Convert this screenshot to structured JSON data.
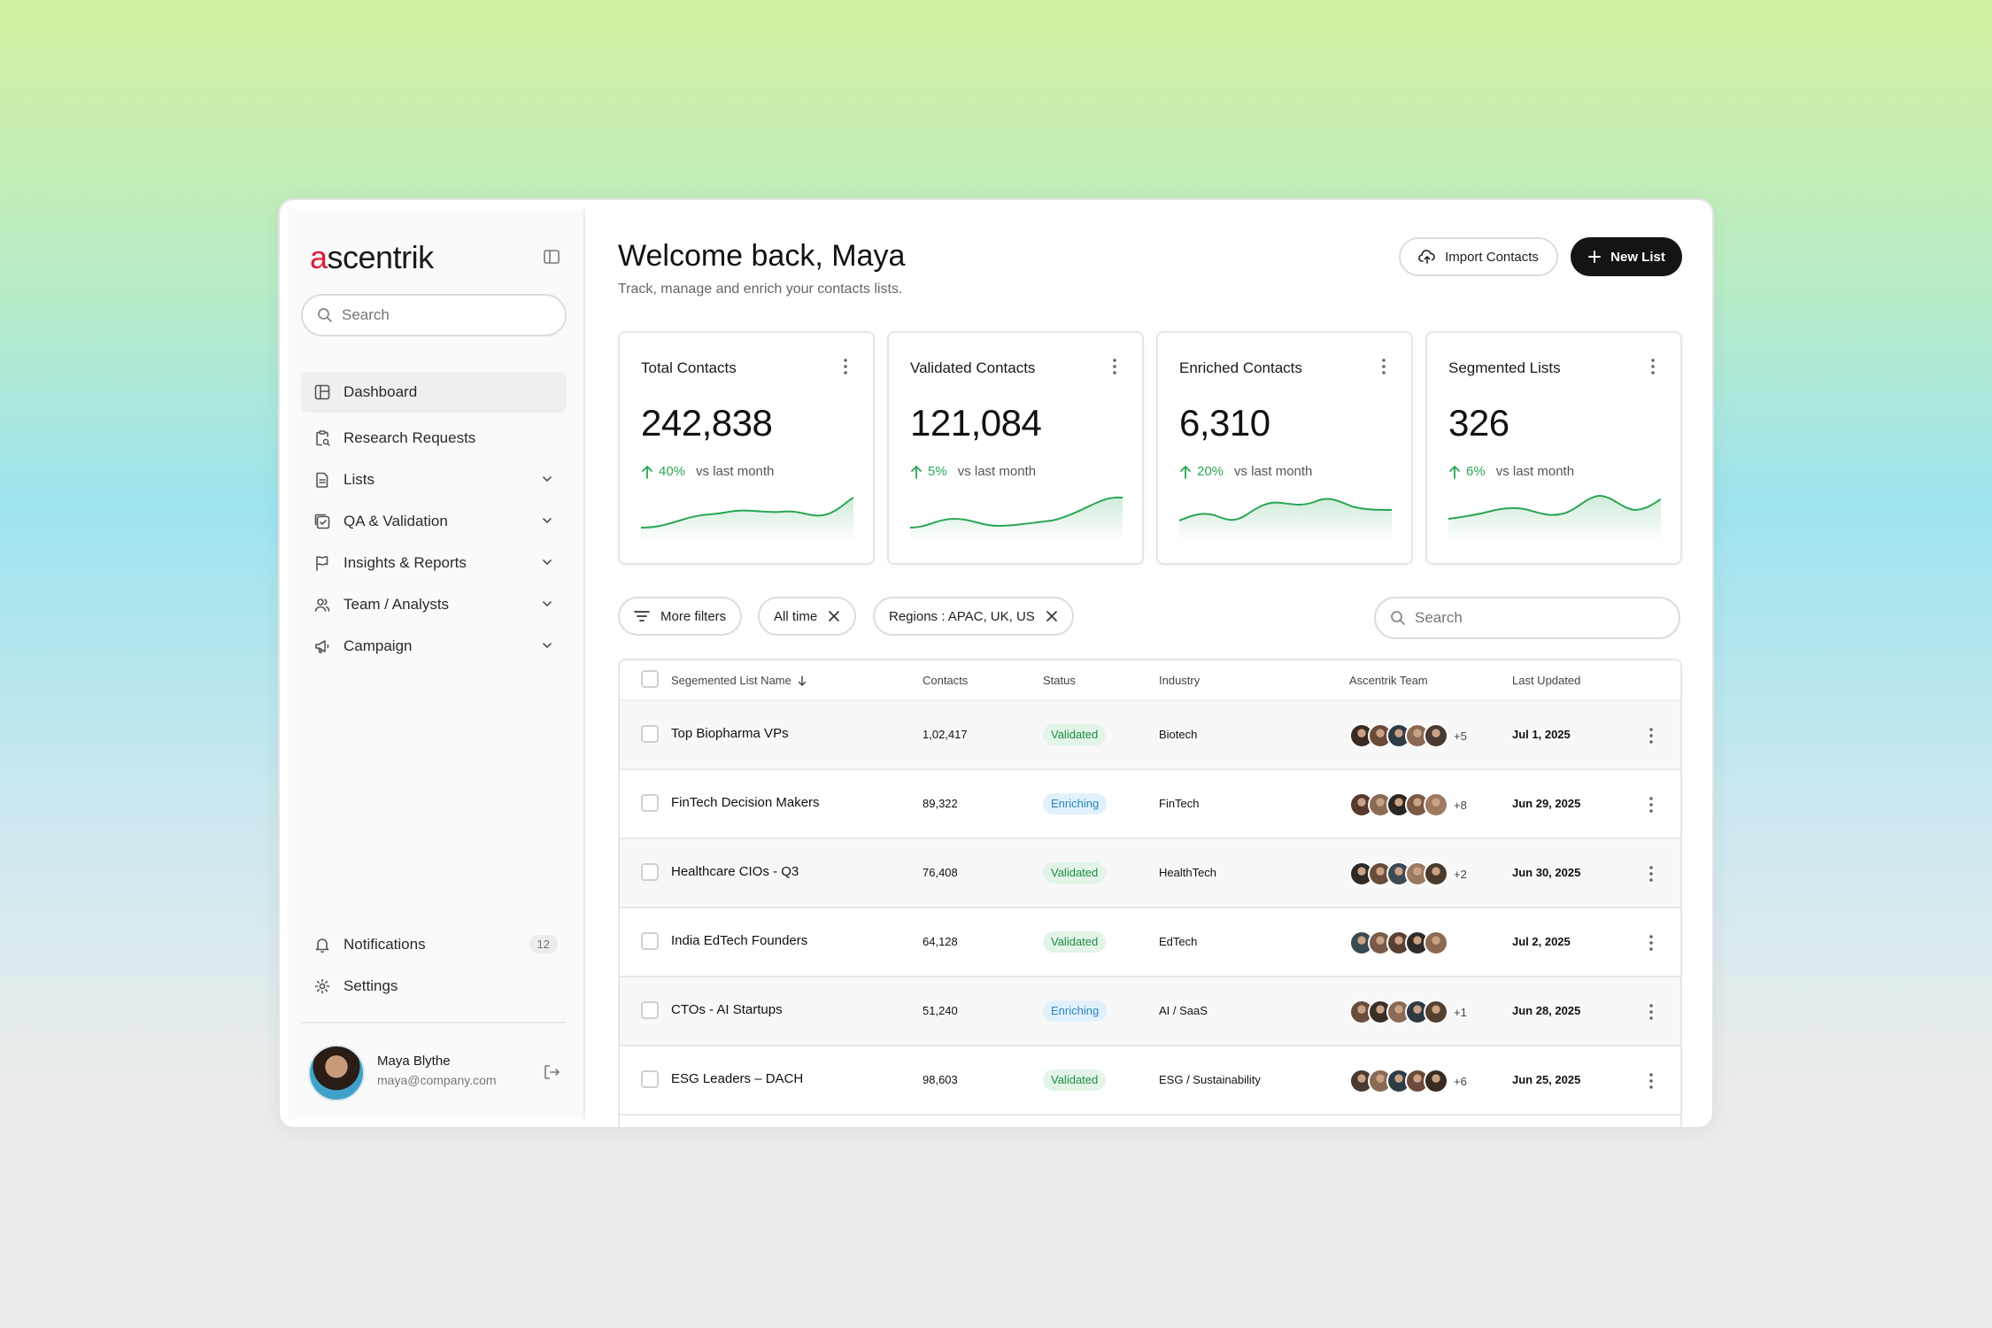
{
  "brand": {
    "logo_accent": "a",
    "logo_rest": "scentrik"
  },
  "sidebar": {
    "search_placeholder": "Search",
    "items": [
      {
        "label": "Dashboard",
        "icon": "dashboard-icon",
        "active": true
      },
      {
        "label": "Research Requests",
        "icon": "clipboard-search-icon"
      },
      {
        "label": "Lists",
        "icon": "document-icon",
        "expandable": true
      },
      {
        "label": "QA & Validation",
        "icon": "checklist-icon",
        "expandable": true
      },
      {
        "label": "Insights & Reports",
        "icon": "flag-icon",
        "expandable": true
      },
      {
        "label": "Team / Analysts",
        "icon": "users-icon",
        "expandable": true
      },
      {
        "label": "Campaign",
        "icon": "megaphone-icon",
        "expandable": true
      }
    ],
    "bottom_items": [
      {
        "label": "Notifications",
        "icon": "bell-icon",
        "badge": "12"
      },
      {
        "label": "Settings",
        "icon": "gear-icon"
      }
    ],
    "user": {
      "name": "Maya Blythe",
      "email": "maya@company.com"
    }
  },
  "header": {
    "title": "Welcome back, Maya",
    "subtitle": "Track, manage and enrich your contacts lists.",
    "import_label": "Import Contacts",
    "new_list_label": "New List"
  },
  "cards": [
    {
      "label": "Total Contacts",
      "value": "242,838",
      "delta": "40%",
      "vs": "vs last month"
    },
    {
      "label": "Validated Contacts",
      "value": "121,084",
      "delta": "5%",
      "vs": "vs last month"
    },
    {
      "label": "Enriched Contacts",
      "value": "6,310",
      "delta": "20%",
      "vs": "vs last month"
    },
    {
      "label": "Segmented Lists",
      "value": "326",
      "delta": "6%",
      "vs": "vs last month"
    }
  ],
  "filters": {
    "more_filters": "More filters",
    "time": "All time",
    "regions": "Regions : APAC, UK, US",
    "search_placeholder": "Search"
  },
  "table": {
    "headers": {
      "name": "Segemented List Name",
      "contacts": "Contacts",
      "status": "Status",
      "industry": "Industry",
      "team": "Ascentrik Team",
      "updated": "Last Updated"
    },
    "rows": [
      {
        "name": "Top Biopharma VPs",
        "contacts": "1,02,417",
        "status": "Validated",
        "industry": "Biotech",
        "avatars": 5,
        "extra": "+5",
        "updated": "Jul 1, 2025"
      },
      {
        "name": "FinTech Decision Makers",
        "contacts": "89,322",
        "status": "Enriching",
        "industry": "FinTech",
        "avatars": 5,
        "extra": "+8",
        "updated": "Jun 29, 2025"
      },
      {
        "name": "Healthcare CIOs - Q3",
        "contacts": "76,408",
        "status": "Validated",
        "industry": "HealthTech",
        "avatars": 5,
        "extra": "+2",
        "updated": "Jun 30, 2025"
      },
      {
        "name": "India EdTech Founders",
        "contacts": "64,128",
        "status": "Validated",
        "industry": "EdTech",
        "avatars": 5,
        "extra": "",
        "updated": "Jul 2, 2025"
      },
      {
        "name": "CTOs - AI Startups",
        "contacts": "51,240",
        "status": "Enriching",
        "industry": "AI / SaaS",
        "avatars": 5,
        "extra": "+1",
        "updated": "Jun 28, 2025"
      },
      {
        "name": "ESG Leaders – DACH",
        "contacts": "98,603",
        "status": "Validated",
        "industry": "ESG / Sustainability",
        "avatars": 5,
        "extra": "+6",
        "updated": "Jun 25, 2025"
      }
    ]
  },
  "colors": {
    "accent": "#141414",
    "positive": "#2aa655",
    "brand_red": "#e01a3a",
    "validated_bg": "#e2f5e8",
    "enriching_bg": "#e1f1fb"
  }
}
